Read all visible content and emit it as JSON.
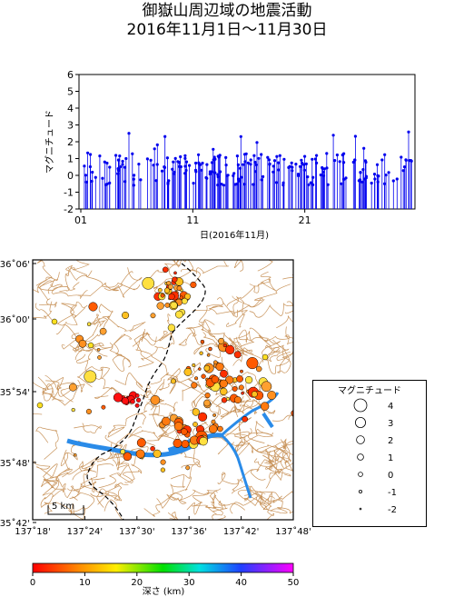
{
  "title": {
    "line1": "御嶽山周辺域の地震活動",
    "line2": "2016年11月1日～11月30日"
  },
  "chart_data": {
    "type": "stem",
    "ylabel": "マグニチュード",
    "xlabel": "日(2016年11月)",
    "ylim": [
      -2,
      6
    ],
    "yticks": [
      "-2",
      "-1",
      "0",
      "1",
      "2",
      "3",
      "4",
      "5",
      "6"
    ],
    "xticks": [
      "01",
      "11",
      "21"
    ],
    "color": "#0000ee",
    "days": 30
  },
  "map": {
    "lat_labels": [
      "36˚06'",
      "36˚00'",
      "35˚54'",
      "35˚48'",
      "35˚42'"
    ],
    "lon_labels": [
      "137˚18'",
      "137˚24'",
      "137˚30'",
      "137˚36'",
      "137˚42'",
      "137˚48'"
    ],
    "scale_label": "5 km",
    "colors": {
      "land": "#ffffff",
      "contour": "#c8935a",
      "water": "#2a8be8",
      "border": "#000000"
    }
  },
  "legend": {
    "title": "マグニチュード",
    "entries": [
      "4",
      "3",
      "2",
      "1",
      "0",
      "-1",
      "-2"
    ]
  },
  "colorbar": {
    "ticks": [
      "0",
      "10",
      "20",
      "30",
      "40",
      "50"
    ],
    "label": "深さ (km)"
  }
}
